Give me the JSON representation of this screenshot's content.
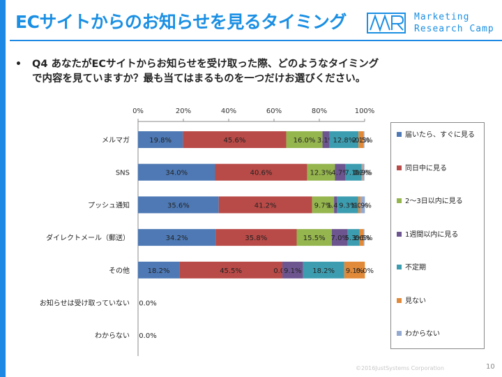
{
  "slide": {
    "title": "ECサイトからのお知らせを見るタイミング",
    "bullet": "•",
    "question_line1": "Q4 あなたがECサイトからお知らせを受け取った際、どのようなタイミング",
    "question_line2": "で内容を見ていますか？最も当てはまるものを一つだけお選びください。",
    "copyright": "©2016JustSystems Corporation",
    "page_number": "10"
  },
  "logo": {
    "mark_text": "MR",
    "line1": "Marketing",
    "line2": "Research Camp"
  },
  "colors": {
    "accent": "#1e88e5",
    "series": [
      "#4e79b5",
      "#b84a47",
      "#95b54e",
      "#6d5590",
      "#3d9db0",
      "#e08a3a",
      "#93a9d0"
    ]
  },
  "chart_data": {
    "type": "bar",
    "orientation": "horizontal",
    "stacked": true,
    "percent": true,
    "xlim": [
      0,
      100
    ],
    "x_ticks": [
      "0%",
      "20%",
      "40%",
      "60%",
      "80%",
      "100%"
    ],
    "grid": false,
    "legend_position": "right",
    "categories": [
      "メルマガ",
      "SNS",
      "プッシュ通知",
      "ダイレクトメール（郵送）",
      "その他",
      "お知らせは受け取っていない",
      "わからない"
    ],
    "series": [
      {
        "name": "届いたら、すぐに見る",
        "values": [
          19.8,
          34.0,
          35.6,
          34.2,
          18.2,
          0.0,
          0.0
        ],
        "labels": [
          "19.8%",
          "34.0%",
          "35.6%",
          "34.2%",
          "18.2%",
          "0.0%",
          "0.0%"
        ]
      },
      {
        "name": "同日中に見る",
        "values": [
          45.6,
          40.6,
          41.2,
          35.8,
          45.5,
          0,
          0
        ],
        "labels": [
          "45.6%",
          "40.6%",
          "41.2%",
          "35.8%",
          "45.5%",
          "",
          ""
        ]
      },
      {
        "name": "2～3日以内に見る",
        "values": [
          16.0,
          12.3,
          9.7,
          15.5,
          0.0,
          0,
          0
        ],
        "labels": [
          "16.0%",
          "12.3%",
          "9.7%",
          "15.5%",
          "0.0%",
          "",
          ""
        ]
      },
      {
        "name": "1週間以内に見る",
        "values": [
          3.1,
          4.7,
          1.4,
          7.0,
          9.1,
          0,
          0
        ],
        "labels": [
          "3.1%",
          "4.7%",
          "1.4%",
          "7.0%",
          "9.1%",
          "",
          ""
        ]
      },
      {
        "name": "不定期",
        "values": [
          12.8,
          7.1,
          9.3,
          5.3,
          18.2,
          0,
          0
        ],
        "labels": [
          "12.8%",
          "7.1%",
          "9.3%",
          "5.3%",
          "18.2%",
          "",
          ""
        ]
      },
      {
        "name": "見ない",
        "values": [
          2.1,
          0.3,
          1.0,
          1.6,
          9.1,
          0,
          0
        ],
        "labels": [
          "2.1%",
          "0.3%",
          "1.0%",
          "1.6%",
          "9.1%",
          "",
          ""
        ]
      },
      {
        "name": "わからない",
        "values": [
          0.5,
          0.9,
          1.9,
          0.5,
          0.0,
          0,
          0
        ],
        "labels": [
          "0.5%",
          "0.9%",
          "1.9%",
          "0.5%",
          "0.0%",
          "",
          ""
        ]
      }
    ]
  }
}
